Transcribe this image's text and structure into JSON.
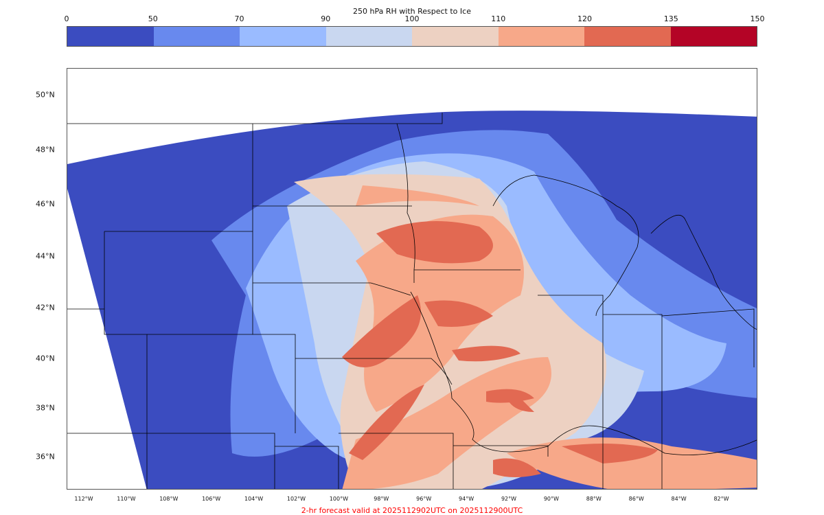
{
  "colorbar": {
    "title": "250 hPa RH with Respect to Ice",
    "ticks": [
      "0",
      "50",
      "70",
      "90",
      "100",
      "110",
      "120",
      "135",
      "150"
    ],
    "colors": [
      "#3b4cc0",
      "#6889ee",
      "#9abbff",
      "#c9d7f0",
      "#edd1c2",
      "#f7a889",
      "#e26952",
      "#b40426"
    ]
  },
  "map": {
    "lat_labels": [
      "50°N",
      "48°N",
      "46°N",
      "44°N",
      "42°N",
      "40°N",
      "38°N",
      "36°N"
    ],
    "lon_labels": [
      "112°W",
      "110°W",
      "108°W",
      "106°W",
      "104°W",
      "102°W",
      "100°W",
      "98°W",
      "96°W",
      "94°W",
      "92°W",
      "90°W",
      "88°W",
      "86°W",
      "84°W",
      "82°W"
    ]
  },
  "caption": {
    "text": "2-hr forecast valid at 2025112902UTC on 2025112900UTC",
    "color": "#ff0000"
  }
}
